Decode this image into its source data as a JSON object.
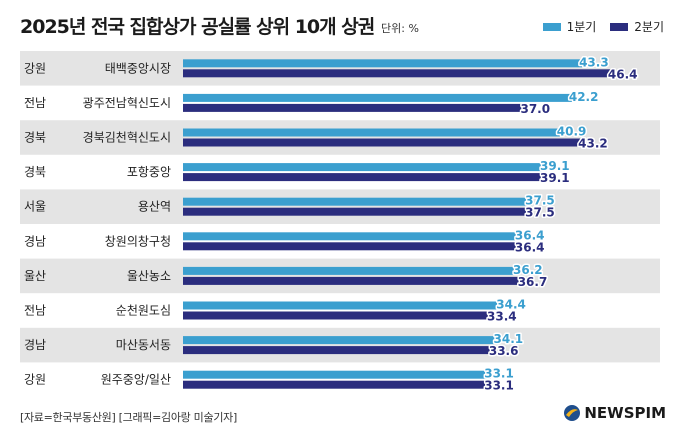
{
  "title": "2025년 전국 집합상가 공실률 상위 10개 상권",
  "unit": "단위: %",
  "legend": {
    "first": "1분기",
    "second": "2분기"
  },
  "colors": {
    "first": "#3b9fcf",
    "second": "#2b2d7e",
    "row_shade": "#e4e4e4",
    "value_first": "#3b9fcf",
    "value_second": "#2b2d7e"
  },
  "footer": "[자료=한국부동산원] [그래픽=김아랑 미술기자]",
  "logo": {
    "text": "NEWSPIM",
    "icon": "newspim-logo-icon"
  },
  "chart_data": {
    "type": "bar",
    "orientation": "horizontal",
    "xlim": [
      0,
      50
    ],
    "categories": [
      {
        "region": "강원",
        "area": "태백중앙시장"
      },
      {
        "region": "전남",
        "area": "광주전남혁신도시"
      },
      {
        "region": "경북",
        "area": "경북김천혁신도시"
      },
      {
        "region": "경북",
        "area": "포항중앙"
      },
      {
        "region": "서울",
        "area": "용산역"
      },
      {
        "region": "경남",
        "area": "창원의창구청"
      },
      {
        "region": "울산",
        "area": "울산농소"
      },
      {
        "region": "전남",
        "area": "순천원도심"
      },
      {
        "region": "경남",
        "area": "마산동서동"
      },
      {
        "region": "강원",
        "area": "원주중앙/일산"
      }
    ],
    "series": [
      {
        "name": "1분기",
        "values": [
          43.3,
          42.2,
          40.9,
          39.1,
          37.5,
          36.4,
          36.2,
          34.4,
          34.1,
          33.1
        ]
      },
      {
        "name": "2분기",
        "values": [
          46.4,
          37.0,
          43.2,
          39.1,
          37.5,
          36.4,
          36.7,
          33.4,
          33.6,
          33.1
        ]
      }
    ]
  }
}
